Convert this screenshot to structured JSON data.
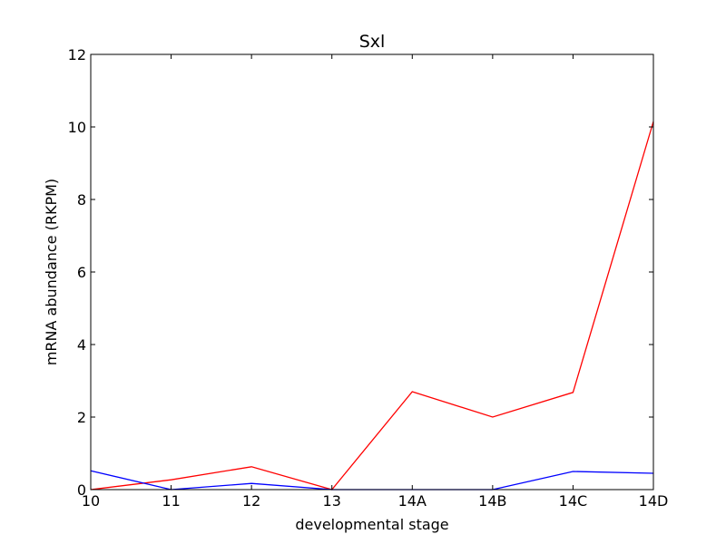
{
  "chart_data": {
    "type": "line",
    "title": "Sxl",
    "xlabel": "developmental stage",
    "ylabel": "mRNA abundance (RKPM)",
    "categories": [
      "10",
      "11",
      "12",
      "13",
      "14A",
      "14B",
      "14C",
      "14D"
    ],
    "ylim": [
      0,
      12
    ],
    "yticks": [
      0,
      2,
      4,
      6,
      8,
      10,
      12
    ],
    "grid": false,
    "series": [
      {
        "name": "red",
        "color": "#ff0000",
        "values": [
          0.0,
          0.27,
          0.63,
          0.0,
          2.7,
          2.0,
          2.68,
          10.15
        ]
      },
      {
        "name": "blue",
        "color": "#0000ff",
        "values": [
          0.52,
          0.0,
          0.17,
          0.0,
          0.0,
          0.0,
          0.5,
          0.45
        ]
      }
    ]
  }
}
